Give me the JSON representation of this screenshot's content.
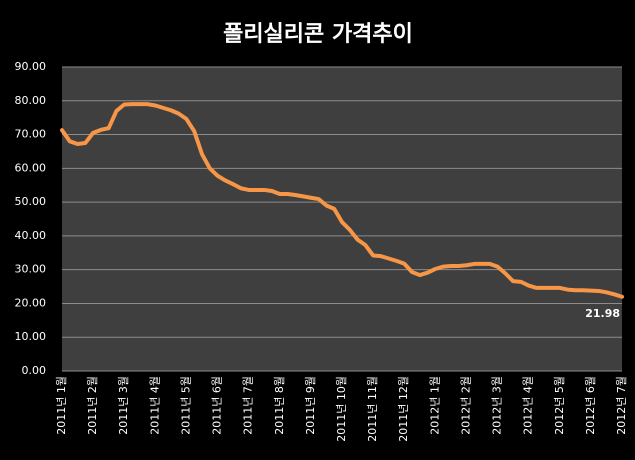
{
  "chart_data": {
    "type": "line",
    "title": "폴리실리콘 가격추이",
    "categories": [
      "2011년 1월",
      null,
      null,
      null,
      "2011년 2월",
      null,
      null,
      null,
      "2011년 3월",
      null,
      null,
      null,
      "2011년 4월",
      null,
      null,
      null,
      "2011년 5월",
      null,
      null,
      null,
      "2011년 6월",
      null,
      null,
      null,
      "2011년 7월",
      null,
      null,
      null,
      "2011년 8월",
      null,
      null,
      null,
      "2011년 9월",
      null,
      null,
      null,
      "2011년 10월",
      null,
      null,
      null,
      "2011년 11월",
      null,
      null,
      null,
      "2011년 12월",
      null,
      null,
      null,
      "2012년 1월",
      null,
      null,
      null,
      "2012년 2월",
      null,
      null,
      null,
      "2012년 3월",
      null,
      null,
      null,
      "2012년 4월",
      null,
      null,
      null,
      "2012년 5월",
      null,
      null,
      null,
      "2012년 6월",
      null,
      null,
      null,
      "2012년 7월"
    ],
    "series": [
      {
        "name": "폴리실리콘",
        "color": "#f79646",
        "values": [
          71.3,
          68.0,
          67.2,
          67.5,
          70.5,
          71.4,
          71.9,
          77.0,
          78.9,
          79,
          79,
          79,
          78.6,
          77.9,
          77.2,
          76.2,
          74.6,
          71,
          64.2,
          60,
          57.8,
          56.4,
          55.3,
          54.1,
          53.6,
          53.6,
          53.6,
          53.3,
          52.4,
          52.4,
          52.1,
          51.7,
          51.3,
          50.9,
          49,
          48,
          44.1,
          41.8,
          38.9,
          37.3,
          34.2,
          34,
          33.3,
          32.6,
          31.8,
          29.3,
          28.4,
          29.1,
          30.2,
          30.9,
          31.1,
          31.1,
          31.3,
          31.7,
          31.7,
          31.7,
          30.9,
          28.9,
          26.6,
          26.4,
          25.3,
          24.6,
          24.6,
          24.6,
          24.6,
          24.1,
          23.9,
          23.9,
          23.8,
          23.7,
          23.3,
          22.7,
          21.98
        ]
      }
    ],
    "ylim": [
      0,
      90
    ],
    "yticks": [
      {
        "value": 0,
        "label": "0.00"
      },
      {
        "value": 10,
        "label": "10.00"
      },
      {
        "value": 20,
        "label": "20.00"
      },
      {
        "value": 30,
        "label": "30.00"
      },
      {
        "value": 40,
        "label": "40.00"
      },
      {
        "value": 50,
        "label": "50.00"
      },
      {
        "value": 60,
        "label": "60.00"
      },
      {
        "value": 70,
        "label": "70.00"
      },
      {
        "value": 80,
        "label": "80.00"
      },
      {
        "value": 90,
        "label": "90.00"
      }
    ],
    "grid": true
  }
}
